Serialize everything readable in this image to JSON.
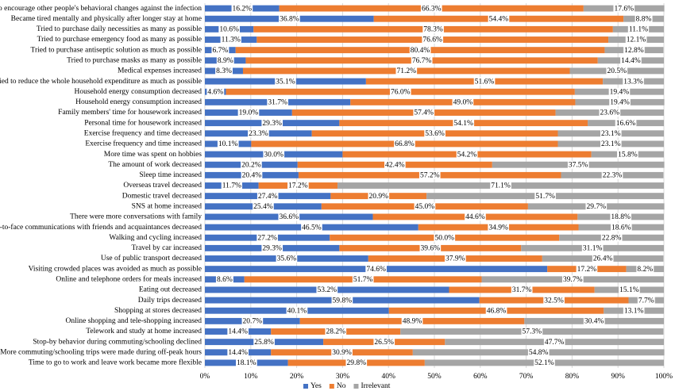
{
  "chart_data": {
    "type": "stacked-barh",
    "categories": [
      "Tried to encourage other people's behavioral changes against the infection",
      "Became tired mentally and physically after longer stay at home",
      "Tried to purchase daily necessities as many as possible",
      "Tried to purchase emergency food as many as possible",
      "Tried to purchase antiseptic solution as much as possible",
      "Tried to purchase masks as many as possible",
      "Medical expenses increased",
      "Tried to reduce the whole household expenditure as much as possible",
      "Household energy consumption decreased",
      "Household energy consumption increased",
      "Family members' time for housework increased",
      "Personal time for housework increased",
      "Exercise frequency and time decreased",
      "Exercise frequency and time increased",
      "More time was spent on hobbies",
      "The amount of work decreased",
      "Sleep time increased",
      "Overseas travel decreased",
      "Domestic travel decreased",
      "SNS at home increased",
      "There were more conversations with family",
      "Face-to-face communications with friends and acquaintances decreased",
      "Walking and cycling increased",
      "Travel by car increased",
      "Use of public transport decreased",
      "Visiting crowded places was avoided as much as possible",
      "Online and telephone orders for meals increased",
      "Eating out decreased",
      "Daily trips decreased",
      "Shopping at stores decreased",
      "Online shopping and tele-shopping increased",
      "Telework and study at home increased",
      "Stop-by behavior during commuting/schooling declined",
      "More commuting/schooling trips were made during off-peak hours",
      "Time to go to work and leave work became more flexible"
    ],
    "series": [
      {
        "name": "Yes",
        "color": "#4472c4",
        "values": [
          16.2,
          36.8,
          10.6,
          11.3,
          6.7,
          8.9,
          8.3,
          35.1,
          4.6,
          31.7,
          19.0,
          29.3,
          23.3,
          10.1,
          30.0,
          20.2,
          20.4,
          11.7,
          27.4,
          25.4,
          36.6,
          46.5,
          27.2,
          29.3,
          35.6,
          74.6,
          8.6,
          53.2,
          59.8,
          40.1,
          20.7,
          14.4,
          25.8,
          14.4,
          18.1
        ],
        "value_labels": [
          "16.2%",
          "36.8%",
          "10.6%",
          "11.3%",
          "6.7%",
          "8.9%",
          "8.3%",
          "35.1%",
          "4.6%",
          "31.7%",
          "19.0%",
          "29.3%",
          "23.3%",
          "10.1%",
          "30.0%",
          "20.2%",
          "20.4%",
          "11.7%",
          "27.4%",
          "25.4%",
          "36.6%",
          "46.5%",
          "27.2%",
          "29.3%",
          "35.6%",
          "74.6%",
          "8.6%",
          "53.2%",
          "59.8%",
          "40.1%",
          "20.7%",
          "14.4%",
          "25.8%",
          "14.4%",
          "18.1%"
        ]
      },
      {
        "name": "No",
        "color": "#ed7d31",
        "values": [
          66.3,
          54.4,
          78.3,
          76.6,
          80.4,
          76.7,
          71.2,
          51.6,
          76.0,
          49.0,
          57.4,
          54.1,
          53.6,
          66.8,
          54.2,
          42.4,
          57.2,
          17.2,
          20.9,
          45.0,
          44.6,
          34.9,
          50.0,
          39.6,
          37.9,
          17.2,
          51.7,
          31.7,
          32.5,
          46.8,
          48.9,
          28.2,
          26.5,
          30.9,
          29.8
        ],
        "value_labels": [
          "66.3%",
          "54.4%",
          "78.3%",
          "76.6%",
          "80.4%",
          "76.7%",
          "71.2%",
          "51.6%",
          "76.0%",
          "49.0%",
          "57.4%",
          "54.1%",
          "53.6%",
          "66.8%",
          "54.2%",
          "42.4%",
          "57.2%",
          "17.2%",
          "20.9%",
          "45.0%",
          "44.6%",
          "34.9%",
          "50.0%",
          "39.6%",
          "37.9%",
          "17.2%",
          "51.7%",
          "31.7%",
          "32.5%",
          "46.8%",
          "48.9%",
          "28.2%",
          "26.5%",
          "30.9%",
          "29.8%"
        ]
      },
      {
        "name": "Irrelevant",
        "color": "#a5a5a5",
        "values": [
          17.6,
          8.8,
          11.1,
          12.1,
          12.8,
          14.4,
          20.5,
          13.3,
          19.4,
          19.4,
          23.6,
          16.6,
          23.1,
          23.1,
          15.8,
          37.5,
          22.3,
          71.1,
          51.7,
          29.7,
          18.8,
          18.6,
          22.8,
          31.1,
          26.4,
          8.2,
          39.7,
          15.1,
          7.7,
          13.1,
          30.4,
          57.3,
          47.7,
          54.8,
          52.1
        ],
        "value_labels": [
          "17.6%",
          "8.8%",
          "11.1%",
          "12.1%",
          "12.8%",
          "14.4%",
          "20.5%",
          "13.3%",
          "19.4%",
          "19.4%",
          "23.6%",
          "16.6%",
          "23.1%",
          "23.1%",
          "15.8%",
          "37.5%",
          "22.3%",
          "71.1%",
          "51.7%",
          "29.7%",
          "18.8%",
          "18.6%",
          "22.8%",
          "31.1%",
          "26.4%",
          "8.2%",
          "39.7%",
          "15.1%",
          "7.7%",
          "13.1%",
          "30.4%",
          "57.3%",
          "47.7%",
          "54.8%",
          "52.1%"
        ]
      }
    ],
    "xlim": [
      0,
      100
    ],
    "xticks": [
      {
        "value": 0,
        "label": "0%"
      },
      {
        "value": 10,
        "label": "10%"
      },
      {
        "value": 20,
        "label": "20%"
      },
      {
        "value": 30,
        "label": "30%"
      },
      {
        "value": 40,
        "label": "40%"
      },
      {
        "value": 50,
        "label": "50%"
      },
      {
        "value": 60,
        "label": "60%"
      },
      {
        "value": 70,
        "label": "70%"
      },
      {
        "value": 80,
        "label": "80%"
      },
      {
        "value": 90,
        "label": "90%"
      },
      {
        "value": 100,
        "label": "100%"
      }
    ],
    "grid": true,
    "legend": "bottom"
  }
}
